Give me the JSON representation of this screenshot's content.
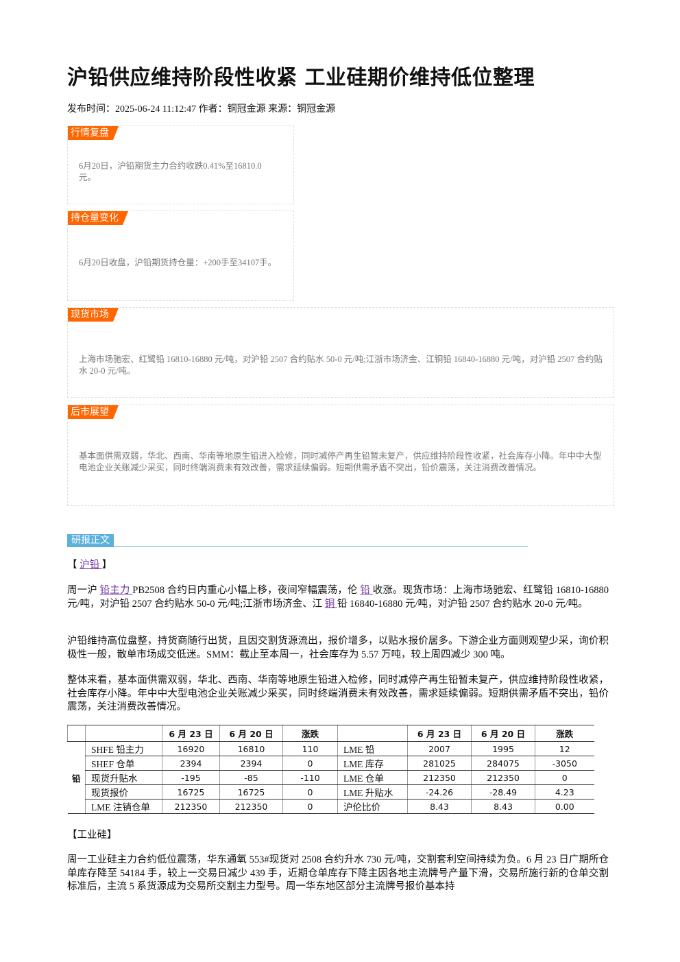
{
  "header": {
    "title": "沪铅供应维持阶段性收紧 工业硅期价维持低位整理",
    "meta": "发布时间：2025-06-24 11:12:47 作者：铜冠金源 来源：铜冠金源"
  },
  "summary": [
    {
      "tag": "行情复盘",
      "body": "6月20日，沪铅期货主力合约收跌0.41%至16810.0元。"
    },
    {
      "tag": "持仓量变化",
      "body": "6月20日收盘，沪铅期货持仓量：+200手至34107手。"
    },
    {
      "tag": "现货市场",
      "body": "上海市场驰宏、红鹭铅 16810-16880 元/吨，对沪铅 2507 合约贴水 50-0 元/吨;江浙市场济金、江铜铅 16840-16880 元/吨，对沪铅 2507 合约贴水 20-0 元/吨。"
    },
    {
      "tag": "后市展望",
      "body": "基本面供需双弱，华北、西南、华南等地原生铅进入检修，同时减停产再生铅暂未复产，供应维持阶段性收紧，社会库存小降。年中中大型电池企业关账减少采买，同时终端消费未有效改善，需求延续偏弱。短期供需矛盾不突出，铅价震荡，关注消费改善情况。"
    }
  ],
  "report": {
    "tag": "研报正文",
    "lead_heading": [
      {
        "text": "【 "
      },
      {
        "link": "沪铅 "
      },
      {
        "text": "】"
      }
    ],
    "lead_paragraphs": [
      [
        {
          "text": "周一沪 "
        },
        {
          "link": "铅主力 "
        },
        {
          "text": "PB2508 合约日内重心小幅上移，夜间窄幅震荡，伦 "
        },
        {
          "link": "铅 "
        },
        {
          "text": "收涨。现货市场：上海市场驰宏、红鹭铅 16810-16880 元/吨，对沪铅 2507 合约贴水 50-0 元/吨;江浙市场济金、江 "
        },
        {
          "link": "铜 "
        },
        {
          "text": "铅 16840-16880 元/吨，对沪铅 2507 合约贴水 20-0 元/吨。"
        }
      ],
      [
        {
          "text": "沪铅维持高位盘整，持货商随行出货，且因交割货源流出，报价增多，以贴水报价居多。下游企业方面则观望少采，询价积极性一般，散单市场成交低迷。SMM：截止至本周一，社会库存为 5.57 万吨，较上周四减少 300 吨。"
        }
      ],
      [
        {
          "text": "整体来看，基本面供需双弱，华北、西南、华南等地原生铅进入检修，同时减停产再生铅暂未复产，供应维持阶段性收紧，社会库存小降。年中中大型电池企业关账减少采买，同时终端消费未有效改善，需求延续偏弱。短期供需矛盾不突出，铅价震荡，关注消费改善情况。"
        }
      ]
    ],
    "table": {
      "header": [
        "6 月 23 日",
        "6 月 20 日",
        "涨跌",
        "6 月 23 日",
        "6 月 20 日",
        "涨跌"
      ],
      "group": "铅",
      "rows": [
        [
          "SHFE 铅主力",
          "16920",
          "16810",
          "110",
          "LME 铅",
          "2007",
          "1995",
          "12"
        ],
        [
          "SHEF 仓单",
          "2394",
          "2394",
          "0",
          "LME 库存",
          "281025",
          "284075",
          "-3050"
        ],
        [
          "现货升贴水",
          "-195",
          "-85",
          "-110",
          "LME 仓单",
          "212350",
          "212350",
          "0"
        ],
        [
          "现货报价",
          "16725",
          "16725",
          "0",
          "LME 升贴水",
          "-24.26",
          "-28.49",
          "4.23"
        ],
        [
          "LME 注销仓单",
          "212350",
          "212350",
          "0",
          "沪伦比价",
          "8.43",
          "8.43",
          "0.00"
        ]
      ]
    },
    "second_heading": "【工业硅】",
    "second_paragraph": "周一工业硅主力合约低位震荡，华东通氧 553#现货对 2508 合约升水 730 元/吨，交割套利空间持续为负。6 月 23 日广期所仓单库存降至 54184 手，较上一交易日减少 439 手，近期仓单库存下降主因各地主流牌号产量下滑，交易所施行新的仓单交割标准后，主流 5 系货源成为交易所交割主力型号。周一华东地区部分主流牌号报价基本持"
  }
}
